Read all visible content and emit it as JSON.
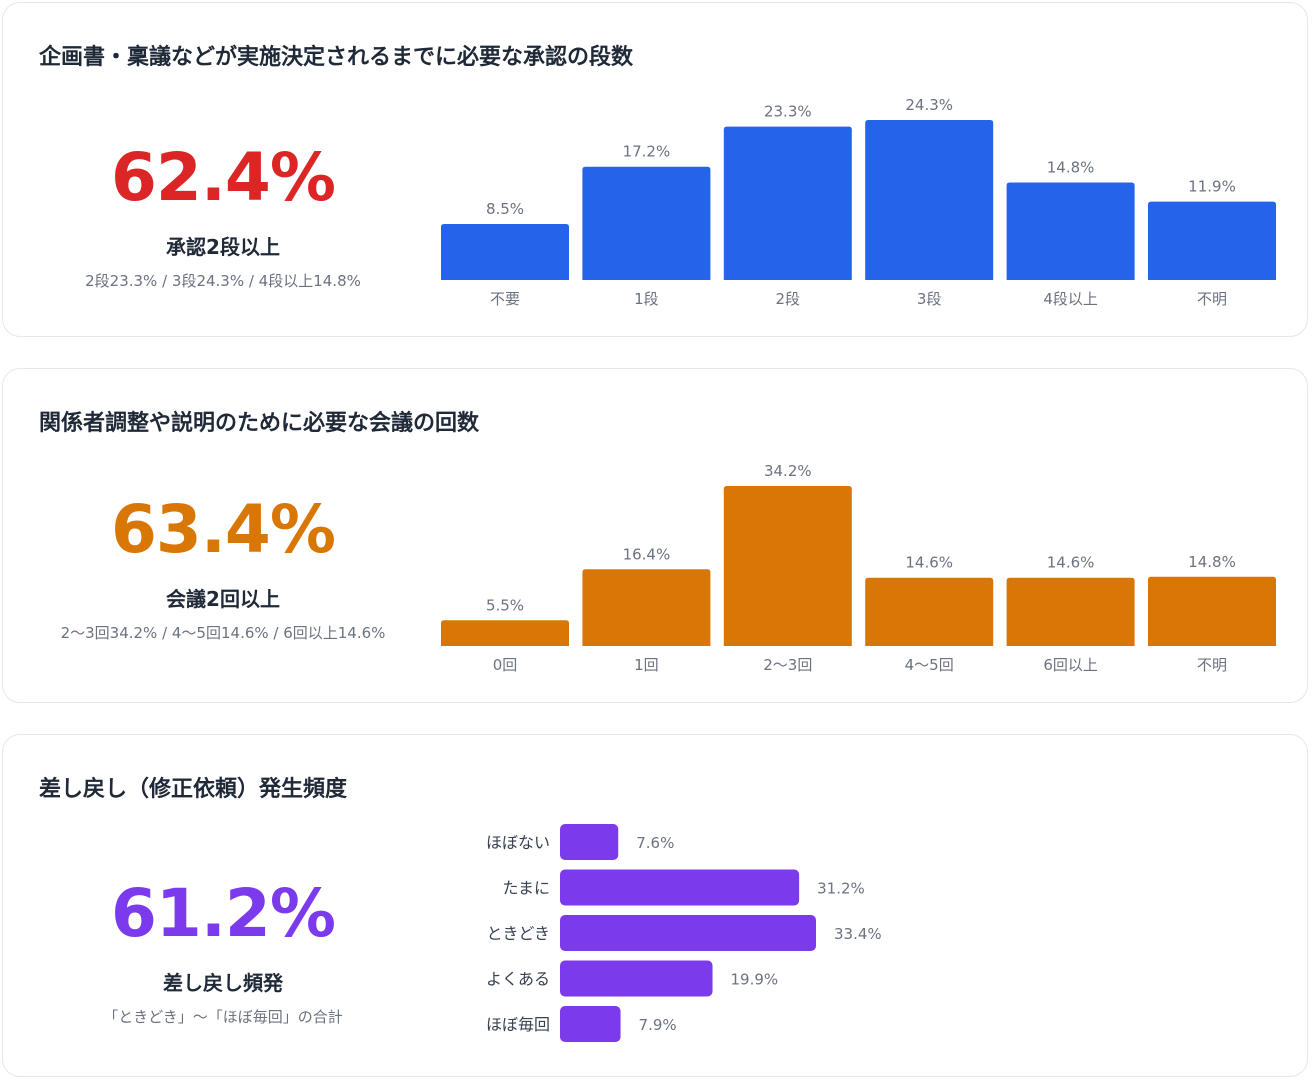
{
  "colors": {
    "red": "#dc2626",
    "orange": "#d97706",
    "blue": "#2563eb",
    "purple": "#7c3aed",
    "axis_text": "#6b7280",
    "label_text": "#374151"
  },
  "sections": [
    {
      "title": "企画書・稟議などが実施決定されるまでに必要な承認の段数",
      "kpi_value": "62.4%",
      "kpi_label": "承認2段以上",
      "kpi_sub": "2段23.3% / 3段24.3% / 4段以上14.8%"
    },
    {
      "title": "関係者調整や説明のために必要な会議の回数",
      "kpi_value": "63.4%",
      "kpi_label": "会議2回以上",
      "kpi_sub": "2〜3回34.2% / 4〜5回14.6% / 6回以上14.6%"
    },
    {
      "title": "差し戻し（修正依頼）発生頻度",
      "kpi_value": "61.2%",
      "kpi_label": "差し戻し頻発",
      "kpi_sub": "「ときどき」〜「ほぼ毎回」の合計"
    }
  ],
  "chart_data": [
    {
      "type": "bar",
      "categories": [
        "不要",
        "1段",
        "2段",
        "3段",
        "4段以上",
        "不明"
      ],
      "values": [
        8.5,
        17.2,
        23.3,
        24.3,
        14.8,
        11.9
      ],
      "value_labels": [
        "8.5%",
        "17.2%",
        "23.3%",
        "24.3%",
        "14.8%",
        "11.9%"
      ],
      "ylim": [
        0,
        24.3
      ],
      "color": "#2563eb"
    },
    {
      "type": "bar",
      "categories": [
        "0回",
        "1回",
        "2〜3回",
        "4〜5回",
        "6回以上",
        "不明"
      ],
      "values": [
        5.5,
        16.4,
        34.2,
        14.6,
        14.6,
        14.8
      ],
      "value_labels": [
        "5.5%",
        "16.4%",
        "34.2%",
        "14.6%",
        "14.6%",
        "14.8%"
      ],
      "ylim": [
        0,
        34.2
      ],
      "color": "#d97706"
    },
    {
      "type": "bar",
      "orientation": "horizontal",
      "categories": [
        "ほぼない",
        "たまに",
        "ときどき",
        "よくある",
        "ほぼ毎回"
      ],
      "values": [
        7.6,
        31.2,
        33.4,
        19.9,
        7.9
      ],
      "value_labels": [
        "7.6%",
        "31.2%",
        "33.4%",
        "19.9%",
        "7.9%"
      ],
      "xlim": [
        0,
        33.4
      ],
      "color": "#7c3aed"
    }
  ]
}
